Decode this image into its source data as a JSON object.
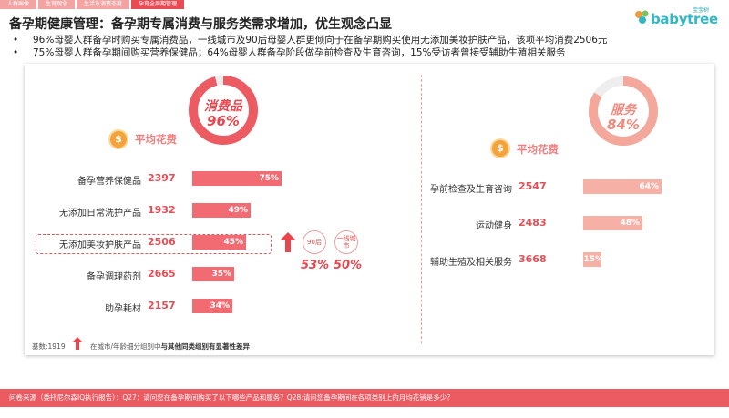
{
  "nav": {
    "tabs": [
      {
        "label": "人群画像",
        "active": false
      },
      {
        "label": "生育观念",
        "active": false
      },
      {
        "label": "生活及消费态度",
        "active": false
      },
      {
        "label": "孕育全周期管理",
        "active": true
      }
    ]
  },
  "logo": {
    "badge": "宝宝树",
    "word": "babytree"
  },
  "title": "备孕期健康管理：备孕期专属消费与服务类需求增加，优生观念凸显",
  "bullets": [
    "96%母婴人群备孕时购买专属消费品，一线城市及90后母婴人群更倾向于在备孕期购买使用无添加美妆护肤产品，该项平均消费2506元",
    "75%母婴人群备孕期间购买营养保健品；64%母婴人群备孕阶段做孕前检查及生育咨询，15%受访者曾接受辅助生殖相关服务"
  ],
  "left": {
    "donut": {
      "name": "消费品",
      "pct_label": "96%",
      "fraction": 0.96,
      "color": "#ec5a62"
    },
    "coin": "$",
    "avg_label": "平均花费",
    "rows": [
      {
        "label": "备孕营养保健品",
        "value": "2397",
        "pct_label": "75%",
        "pct": 75
      },
      {
        "label": "无添加日常洗护产品",
        "value": "1932",
        "pct_label": "49%",
        "pct": 49
      },
      {
        "label": "无添加美妆护肤产品",
        "value": "2506",
        "pct_label": "45%",
        "pct": 45
      },
      {
        "label": "备孕调理药剂",
        "value": "2665",
        "pct_label": "35%",
        "pct": 35
      },
      {
        "label": "助孕耗材",
        "value": "2157",
        "pct_label": "34%",
        "pct": 34
      }
    ],
    "bar_color": "#f26b73",
    "tags": [
      {
        "label": "90后",
        "pct": "53%"
      },
      {
        "label": "一线城市",
        "pct": "50%"
      }
    ]
  },
  "right": {
    "donut": {
      "name": "服务",
      "pct_label": "84%",
      "fraction": 0.84,
      "color": "#f4a89c"
    },
    "coin": "$",
    "avg_label": "平均花费",
    "rows": [
      {
        "label": "孕前检查及生育咨询",
        "value": "2547",
        "pct_label": "64%",
        "pct": 64
      },
      {
        "label": "运动健身",
        "value": "2483",
        "pct_label": "48%",
        "pct": 48
      },
      {
        "label": "辅助生殖及相关服务",
        "value": "3668",
        "pct_label": "15%",
        "pct": 15
      }
    ],
    "bar_color": "#f6b0a6"
  },
  "footnote": {
    "base": "基数:1919",
    "legend_pre": "在城市/年龄细分组别中",
    "legend_b1": "与其他同类组别有",
    "legend_b2": "显著性差异"
  },
  "footer": "问卷来源（委托尼尔森IQ执行报告）：Q27：请问您在备孕期间购买了以下哪些产品和服务？Q28:请问您备孕期间在各项类别上的月均花销是多少？"
}
